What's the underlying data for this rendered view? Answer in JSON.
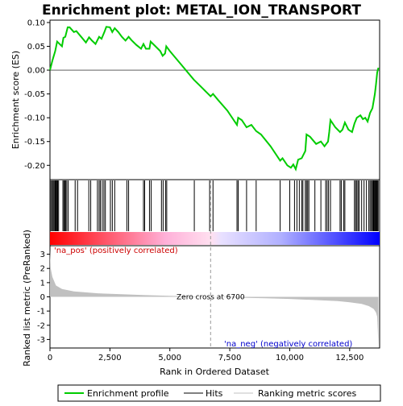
{
  "title": "Enrichment plot: METAL_ION_TRANSPORT",
  "chart_data": {
    "type": "line",
    "title": "Enrichment plot: METAL_ION_TRANSPORT",
    "x_range": [
      0,
      13750
    ],
    "x_ticks": [
      "0",
      "2,500",
      "5,000",
      "7,500",
      "10,000",
      "12,500"
    ],
    "x_tick_values": [
      0,
      2500,
      5000,
      7500,
      10000,
      12500
    ],
    "xlabel": "Rank in Ordered Dataset",
    "es_panel": {
      "ylabel": "Enrichment score (ES)",
      "ylim": [
        -0.23,
        0.105
      ],
      "y_ticks": [
        "0.10",
        "0.05",
        "0.00",
        "-0.05",
        "-0.10",
        "-0.15",
        "-0.20"
      ],
      "y_tick_values": [
        0.1,
        0.05,
        0.0,
        -0.05,
        -0.1,
        -0.15,
        -0.2
      ],
      "series_name": "Enrichment profile",
      "color": "#00cc00",
      "points": [
        [
          0,
          0.0
        ],
        [
          100,
          0.02
        ],
        [
          220,
          0.04
        ],
        [
          300,
          0.06
        ],
        [
          400,
          0.055
        ],
        [
          500,
          0.05
        ],
        [
          560,
          0.068
        ],
        [
          640,
          0.07
        ],
        [
          740,
          0.09
        ],
        [
          820,
          0.09
        ],
        [
          1000,
          0.08
        ],
        [
          1100,
          0.082
        ],
        [
          1300,
          0.07
        ],
        [
          1500,
          0.058
        ],
        [
          1630,
          0.069
        ],
        [
          1750,
          0.062
        ],
        [
          1900,
          0.055
        ],
        [
          2050,
          0.07
        ],
        [
          2150,
          0.066
        ],
        [
          2270,
          0.08
        ],
        [
          2350,
          0.091
        ],
        [
          2500,
          0.09
        ],
        [
          2600,
          0.08
        ],
        [
          2700,
          0.088
        ],
        [
          2850,
          0.08
        ],
        [
          3000,
          0.07
        ],
        [
          3150,
          0.062
        ],
        [
          3280,
          0.07
        ],
        [
          3400,
          0.063
        ],
        [
          3600,
          0.053
        ],
        [
          3800,
          0.045
        ],
        [
          3900,
          0.055
        ],
        [
          4000,
          0.045
        ],
        [
          4150,
          0.045
        ],
        [
          4200,
          0.06
        ],
        [
          4400,
          0.05
        ],
        [
          4600,
          0.04
        ],
        [
          4700,
          0.03
        ],
        [
          4800,
          0.035
        ],
        [
          4850,
          0.05
        ],
        [
          5000,
          0.04
        ],
        [
          5500,
          0.01
        ],
        [
          6000,
          -0.02
        ],
        [
          6300,
          -0.035
        ],
        [
          6600,
          -0.05
        ],
        [
          6700,
          -0.055
        ],
        [
          6800,
          -0.05
        ],
        [
          7000,
          -0.062
        ],
        [
          7400,
          -0.085
        ],
        [
          7800,
          -0.115
        ],
        [
          7850,
          -0.1
        ],
        [
          8000,
          -0.105
        ],
        [
          8200,
          -0.12
        ],
        [
          8400,
          -0.115
        ],
        [
          8600,
          -0.128
        ],
        [
          8800,
          -0.135
        ],
        [
          9200,
          -0.16
        ],
        [
          9600,
          -0.19
        ],
        [
          9700,
          -0.185
        ],
        [
          9900,
          -0.2
        ],
        [
          10050,
          -0.205
        ],
        [
          10150,
          -0.198
        ],
        [
          10250,
          -0.208
        ],
        [
          10350,
          -0.188
        ],
        [
          10500,
          -0.185
        ],
        [
          10650,
          -0.17
        ],
        [
          10700,
          -0.135
        ],
        [
          10850,
          -0.14
        ],
        [
          11100,
          -0.155
        ],
        [
          11300,
          -0.15
        ],
        [
          11450,
          -0.16
        ],
        [
          11600,
          -0.15
        ],
        [
          11650,
          -0.13
        ],
        [
          11700,
          -0.105
        ],
        [
          11900,
          -0.12
        ],
        [
          12100,
          -0.13
        ],
        [
          12200,
          -0.125
        ],
        [
          12300,
          -0.11
        ],
        [
          12450,
          -0.125
        ],
        [
          12600,
          -0.13
        ],
        [
          12700,
          -0.112
        ],
        [
          12800,
          -0.1
        ],
        [
          12950,
          -0.095
        ],
        [
          13050,
          -0.103
        ],
        [
          13150,
          -0.1
        ],
        [
          13250,
          -0.108
        ],
        [
          13350,
          -0.09
        ],
        [
          13450,
          -0.08
        ],
        [
          13550,
          -0.05
        ],
        [
          13600,
          -0.03
        ],
        [
          13650,
          -0.005
        ],
        [
          13700,
          0.005
        ]
      ]
    },
    "hits_panel": {
      "positions": [
        40,
        90,
        130,
        170,
        210,
        230,
        260,
        290,
        320,
        360,
        540,
        580,
        620,
        650,
        700,
        760,
        1050,
        1150,
        1620,
        1700,
        1980,
        2050,
        2100,
        2180,
        2250,
        2310,
        2520,
        2600,
        2700,
        3210,
        3280,
        3900,
        3950,
        4150,
        4220,
        4650,
        4720,
        4820,
        4870,
        6020,
        6660,
        6800,
        7800,
        7850,
        8200,
        8600,
        9600,
        10000,
        10200,
        10300,
        10400,
        10500,
        10550,
        10650,
        10700,
        10750,
        10800,
        11050,
        11300,
        11500,
        11560,
        11620,
        11700,
        12100,
        12150,
        12250,
        12300,
        12700,
        12750,
        12800,
        12850,
        12900,
        13000,
        13100,
        13200,
        13300,
        13350,
        13400,
        13450,
        13480,
        13510,
        13540,
        13570,
        13600,
        13630,
        13660,
        13690
      ],
      "gradient": "#ff0000 to #0000ff"
    },
    "metric_panel": {
      "ylabel": "Ranked list metric (PreRanked)",
      "ylim": [
        -3.6,
        3.6
      ],
      "y_ticks": [
        "3",
        "2",
        "1",
        "0",
        "-1",
        "-2",
        "-3"
      ],
      "y_tick_values": [
        3,
        2,
        1,
        0,
        -1,
        -2,
        -3
      ],
      "series_name": "Ranking metric scores",
      "color": "#c0c0c0",
      "points": [
        [
          0,
          3.3
        ],
        [
          30,
          2.0
        ],
        [
          100,
          1.4
        ],
        [
          250,
          0.8
        ],
        [
          500,
          0.55
        ],
        [
          1000,
          0.38
        ],
        [
          2000,
          0.25
        ],
        [
          3000,
          0.18
        ],
        [
          4000,
          0.12
        ],
        [
          5000,
          0.07
        ],
        [
          6000,
          0.03
        ],
        [
          6700,
          0.0
        ],
        [
          8000,
          -0.06
        ],
        [
          9000,
          -0.1
        ],
        [
          10000,
          -0.15
        ],
        [
          11000,
          -0.22
        ],
        [
          12000,
          -0.3
        ],
        [
          12500,
          -0.38
        ],
        [
          13000,
          -0.5
        ],
        [
          13300,
          -0.65
        ],
        [
          13500,
          -0.85
        ],
        [
          13600,
          -1.1
        ],
        [
          13650,
          -1.4
        ],
        [
          13700,
          -3.4
        ]
      ],
      "zero_cross_label": "Zero cross at 6700",
      "zero_cross": 6700,
      "pos_label": "'na_pos' (positively correlated)",
      "neg_label": "'na_neg' (negatively correlated)"
    },
    "legend": {
      "placement": "bottom",
      "items": [
        {
          "label": "Enrichment profile",
          "color": "#00cc00"
        },
        {
          "label": "Hits",
          "color": "#000000"
        },
        {
          "label": "Ranking metric scores",
          "color": "#c0c0c0"
        }
      ]
    }
  }
}
